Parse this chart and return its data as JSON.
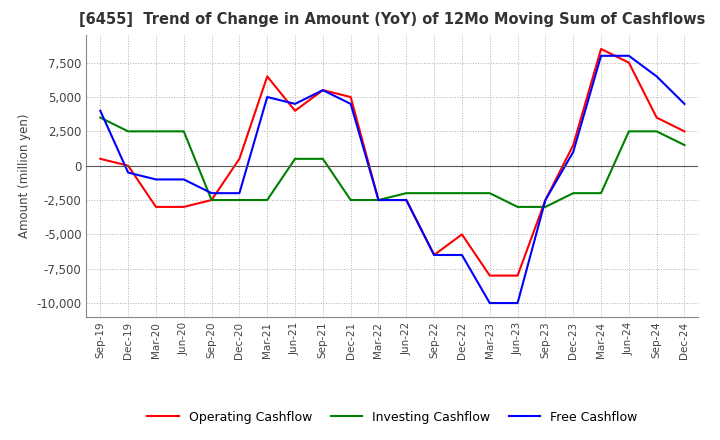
{
  "title": "[6455]  Trend of Change in Amount (YoY) of 12Mo Moving Sum of Cashflows",
  "ylabel": "Amount (million yen)",
  "x_labels": [
    "Sep-19",
    "Dec-19",
    "Mar-20",
    "Jun-20",
    "Sep-20",
    "Dec-20",
    "Mar-21",
    "Jun-21",
    "Sep-21",
    "Dec-21",
    "Mar-22",
    "Jun-22",
    "Sep-22",
    "Dec-22",
    "Mar-23",
    "Jun-23",
    "Sep-23",
    "Dec-23",
    "Mar-24",
    "Jun-24",
    "Sep-24",
    "Dec-24"
  ],
  "operating": [
    500,
    0,
    -3000,
    -3000,
    -2500,
    500,
    6500,
    4000,
    5500,
    5000,
    -2500,
    -2500,
    -6500,
    -5000,
    -8000,
    -8000,
    -2500,
    1500,
    8500,
    7500,
    3500,
    2500
  ],
  "investing": [
    3500,
    2500,
    2500,
    2500,
    -2500,
    -2500,
    -2500,
    500,
    500,
    -2500,
    -2500,
    -2000,
    -2000,
    -2000,
    -2000,
    -3000,
    -3000,
    -2000,
    -2000,
    2500,
    2500,
    1500
  ],
  "free": [
    4000,
    -500,
    -1000,
    -1000,
    -2000,
    -2000,
    5000,
    4500,
    5500,
    4500,
    -2500,
    -2500,
    -6500,
    -6500,
    -10000,
    -10000,
    -2500,
    1000,
    8000,
    8000,
    6500,
    4500
  ],
  "operating_color": "#ff0000",
  "investing_color": "#008000",
  "free_color": "#0000ff",
  "ylim": [
    -11000,
    9500
  ],
  "yticks": [
    -10000,
    -7500,
    -5000,
    -2500,
    0,
    2500,
    5000,
    7500
  ],
  "background_color": "#ffffff",
  "grid_color": "#b0b0b0"
}
